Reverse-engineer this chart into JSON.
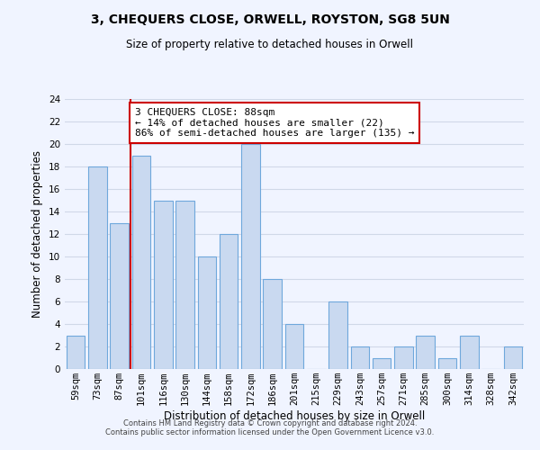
{
  "title": "3, CHEQUERS CLOSE, ORWELL, ROYSTON, SG8 5UN",
  "subtitle": "Size of property relative to detached houses in Orwell",
  "xlabel": "Distribution of detached houses by size in Orwell",
  "ylabel": "Number of detached properties",
  "bin_labels": [
    "59sqm",
    "73sqm",
    "87sqm",
    "101sqm",
    "116sqm",
    "130sqm",
    "144sqm",
    "158sqm",
    "172sqm",
    "186sqm",
    "201sqm",
    "215sqm",
    "229sqm",
    "243sqm",
    "257sqm",
    "271sqm",
    "285sqm",
    "300sqm",
    "314sqm",
    "328sqm",
    "342sqm"
  ],
  "bar_heights": [
    3,
    18,
    13,
    19,
    15,
    15,
    10,
    12,
    20,
    8,
    4,
    0,
    6,
    2,
    1,
    2,
    3,
    1,
    3,
    0,
    2
  ],
  "bar_color": "#c9d9f0",
  "bar_edge_color": "#6fa8dc",
  "grid_color": "#d0d8e8",
  "vline_color": "#cc0000",
  "annotation_text": "3 CHEQUERS CLOSE: 88sqm\n← 14% of detached houses are smaller (22)\n86% of semi-detached houses are larger (135) →",
  "annotation_box_color": "#ffffff",
  "annotation_box_edge": "#cc0000",
  "ylim": [
    0,
    24
  ],
  "yticks": [
    0,
    2,
    4,
    6,
    8,
    10,
    12,
    14,
    16,
    18,
    20,
    22,
    24
  ],
  "footer_line1": "Contains HM Land Registry data © Crown copyright and database right 2024.",
  "footer_line2": "Contains public sector information licensed under the Open Government Licence v3.0.",
  "bg_color": "#f0f4ff",
  "title_fontsize": 10,
  "subtitle_fontsize": 8.5,
  "axis_label_fontsize": 8.5,
  "tick_fontsize": 7.5,
  "annotation_fontsize": 8,
  "footer_fontsize": 6
}
